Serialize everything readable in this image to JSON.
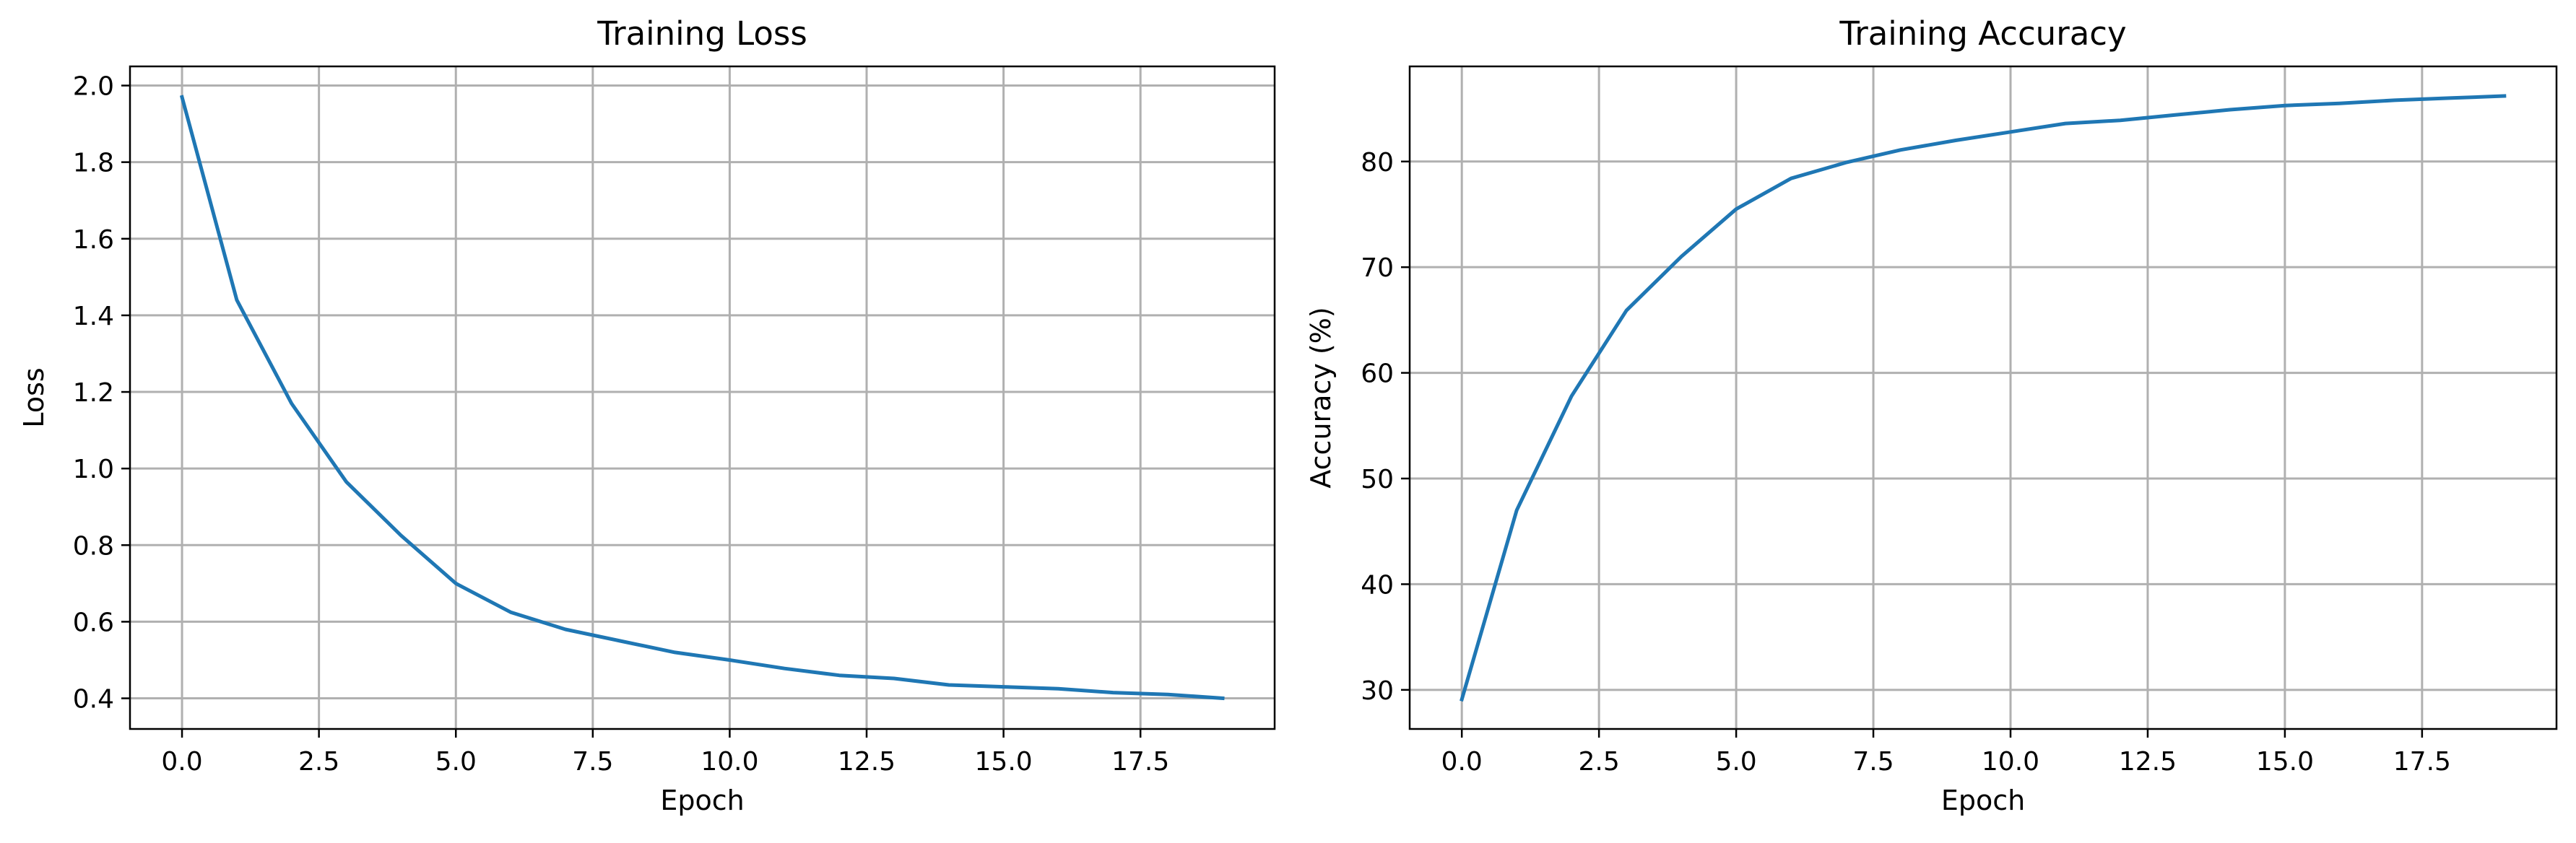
{
  "chart_data": [
    {
      "type": "line",
      "title": "Training Loss",
      "xlabel": "Epoch",
      "ylabel": "Loss",
      "grid": true,
      "xlim": [
        -0.95,
        19.95
      ],
      "ylim": [
        0.32,
        2.05
      ],
      "xticks": [
        0.0,
        2.5,
        5.0,
        7.5,
        10.0,
        12.5,
        15.0,
        17.5
      ],
      "xtick_labels": [
        "0.0",
        "2.5",
        "5.0",
        "7.5",
        "10.0",
        "12.5",
        "15.0",
        "17.5"
      ],
      "yticks": [
        0.4,
        0.6,
        0.8,
        1.0,
        1.2,
        1.4,
        1.6,
        1.8,
        2.0
      ],
      "ytick_labels": [
        "0.4",
        "0.6",
        "0.8",
        "1.0",
        "1.2",
        "1.4",
        "1.6",
        "1.8",
        "2.0"
      ],
      "series": [
        {
          "color": "#1f77b4",
          "x": [
            0,
            1,
            2,
            3,
            4,
            5,
            6,
            7,
            8,
            9,
            10,
            11,
            12,
            13,
            14,
            15,
            16,
            17,
            18,
            19
          ],
          "values": [
            1.97,
            1.44,
            1.17,
            0.965,
            0.825,
            0.7,
            0.625,
            0.58,
            0.55,
            0.52,
            0.5,
            0.478,
            0.46,
            0.452,
            0.435,
            0.43,
            0.425,
            0.415,
            0.41,
            0.4
          ]
        }
      ]
    },
    {
      "type": "line",
      "title": "Training Accuracy",
      "xlabel": "Epoch",
      "ylabel": "Accuracy (%)",
      "grid": true,
      "xlim": [
        -0.95,
        19.95
      ],
      "ylim": [
        26.3,
        89.0
      ],
      "xticks": [
        0.0,
        2.5,
        5.0,
        7.5,
        10.0,
        12.5,
        15.0,
        17.5
      ],
      "xtick_labels": [
        "0.0",
        "2.5",
        "5.0",
        "7.5",
        "10.0",
        "12.5",
        "15.0",
        "17.5"
      ],
      "yticks": [
        30,
        40,
        50,
        60,
        70,
        80
      ],
      "ytick_labels": [
        "30",
        "40",
        "50",
        "60",
        "70",
        "80"
      ],
      "series": [
        {
          "color": "#1f77b4",
          "x": [
            0,
            1,
            2,
            3,
            4,
            5,
            6,
            7,
            8,
            9,
            10,
            11,
            12,
            13,
            14,
            15,
            16,
            17,
            18,
            19
          ],
          "values": [
            29.1,
            47.0,
            57.8,
            65.9,
            71.0,
            75.5,
            78.4,
            79.9,
            81.1,
            82.0,
            82.8,
            83.6,
            83.9,
            84.4,
            84.9,
            85.3,
            85.5,
            85.8,
            86.0,
            86.2
          ]
        }
      ]
    }
  ]
}
